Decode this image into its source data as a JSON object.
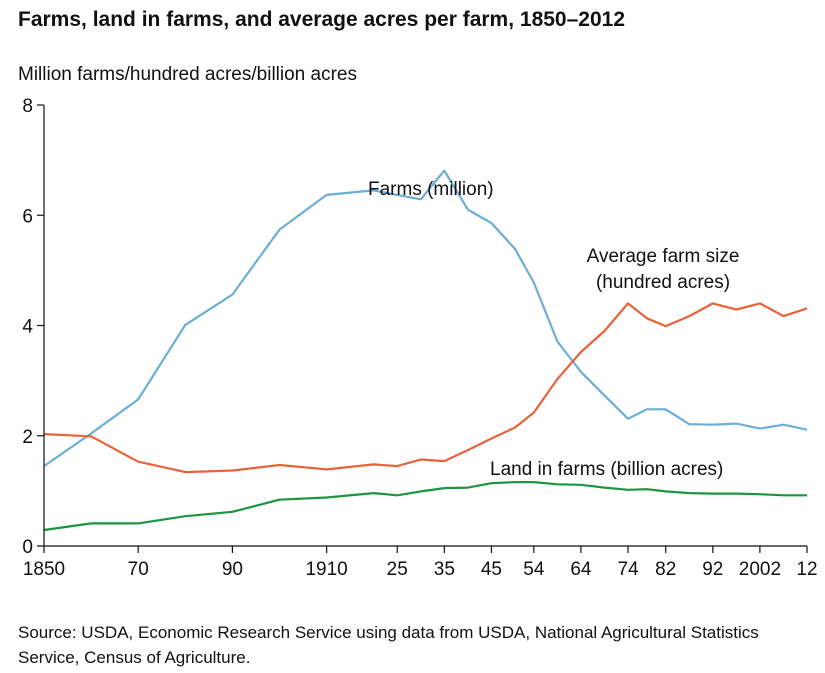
{
  "chart_data": {
    "type": "line",
    "title": "Farms, land in farms, and average acres per farm, 1850–2012",
    "ylabel": "Million farms/hundred acres/billion acres",
    "ylim": [
      0,
      8
    ],
    "yticks": [
      "0",
      "2",
      "4",
      "6",
      "8"
    ],
    "x": [
      1850,
      1860,
      1870,
      1880,
      1890,
      1900,
      1910,
      1920,
      1925,
      1930,
      1935,
      1940,
      1945,
      1950,
      1954,
      1959,
      1964,
      1969,
      1974,
      1978,
      1982,
      1987,
      1992,
      1997,
      2002,
      2007,
      2012
    ],
    "xlim": [
      1850,
      2012
    ],
    "xticks": [
      {
        "year": 1850,
        "label": "1850"
      },
      {
        "year": 1870,
        "label": "70"
      },
      {
        "year": 1890,
        "label": "90"
      },
      {
        "year": 1910,
        "label": "1910"
      },
      {
        "year": 1925,
        "label": "25"
      },
      {
        "year": 1935,
        "label": "35"
      },
      {
        "year": 1945,
        "label": "45"
      },
      {
        "year": 1954,
        "label": "54"
      },
      {
        "year": 1964,
        "label": "64"
      },
      {
        "year": 1974,
        "label": "74"
      },
      {
        "year": 1982,
        "label": "82"
      },
      {
        "year": 1992,
        "label": "92"
      },
      {
        "year": 2002,
        "label": "2002"
      },
      {
        "year": 2012,
        "label": "12"
      }
    ],
    "series": [
      {
        "name": "Farms (million)",
        "color": "#6baed6",
        "values": [
          1.45,
          2.04,
          2.66,
          4.01,
          4.56,
          5.74,
          6.37,
          6.45,
          6.37,
          6.29,
          6.81,
          6.1,
          5.86,
          5.39,
          4.78,
          3.71,
          3.16,
          2.73,
          2.31,
          2.48,
          2.48,
          2.21,
          2.2,
          2.22,
          2.13,
          2.2,
          2.11
        ]
      },
      {
        "name": "Average farm size (hundred acres)",
        "color": "#e8633a",
        "values": [
          2.03,
          1.99,
          1.53,
          1.34,
          1.37,
          1.47,
          1.39,
          1.48,
          1.45,
          1.57,
          1.54,
          1.74,
          1.95,
          2.15,
          2.42,
          3.03,
          3.52,
          3.9,
          4.4,
          4.13,
          3.99,
          4.17,
          4.4,
          4.29,
          4.4,
          4.17,
          4.31
        ]
      },
      {
        "name": "Land in farms (billion acres)",
        "color": "#1a9641",
        "values": [
          0.29,
          0.41,
          0.41,
          0.54,
          0.62,
          0.84,
          0.88,
          0.96,
          0.92,
          0.99,
          1.05,
          1.06,
          1.14,
          1.16,
          1.16,
          1.12,
          1.11,
          1.06,
          1.02,
          1.03,
          0.99,
          0.96,
          0.95,
          0.95,
          0.94,
          0.92,
          0.92
        ]
      }
    ],
    "annotations": [
      {
        "series": 0,
        "lines": [
          "Farms (million)"
        ]
      },
      {
        "series": 1,
        "lines": [
          "Average farm size",
          "(hundred acres)"
        ]
      },
      {
        "series": 2,
        "lines": [
          "Land in farms (billion acres)"
        ]
      }
    ],
    "source": "Source: USDA, Economic Research Service using data from USDA, National Agricultural Statistics Service, Census of Agriculture."
  }
}
